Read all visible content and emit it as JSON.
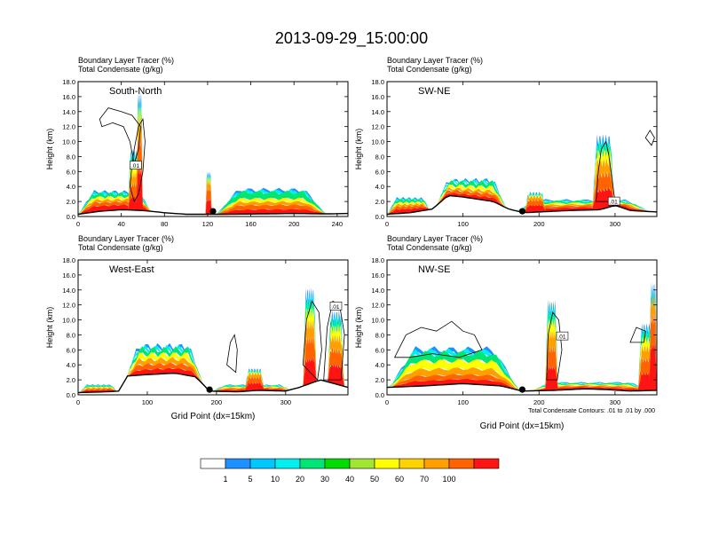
{
  "title": "2013-09-29_15:00:00",
  "colorbar": {
    "colors": [
      "#ffffff",
      "#1e90ff",
      "#00c8ff",
      "#00f0f0",
      "#00e676",
      "#00dc00",
      "#a0e632",
      "#ffff00",
      "#ffd200",
      "#ffa000",
      "#ff6400",
      "#ff1414"
    ],
    "labels": [
      "1",
      "5",
      "10",
      "20",
      "30",
      "40",
      "50",
      "60",
      "70",
      "100"
    ]
  },
  "chart_data": [
    {
      "type": "heatmap",
      "panel_label": "South-North",
      "title_lines": [
        "Boundary Layer Tracer   (%)",
        "Total Condensate   (g/kg)"
      ],
      "ylabel": "Height (km)",
      "xlabel": "",
      "xlim": [
        0,
        250
      ],
      "ylim": [
        0,
        18
      ],
      "xticks": [
        0,
        40,
        80,
        120,
        160,
        200,
        240
      ],
      "yticks": [
        "0.0",
        "2.0",
        "4.0",
        "6.0",
        "8.0",
        "10.0",
        "12.0",
        "14.0",
        "16.0",
        "18.0"
      ],
      "site_x": 125,
      "contour_label": ".01",
      "contour_label_pos": [
        53,
        6.8
      ],
      "terrain": [
        [
          0,
          0.3
        ],
        [
          20,
          0.7
        ],
        [
          40,
          0.9
        ],
        [
          60,
          0.8
        ],
        [
          80,
          0.5
        ],
        [
          100,
          0.3
        ],
        [
          125,
          0.3
        ],
        [
          140,
          0.3
        ],
        [
          170,
          0.35
        ],
        [
          200,
          0.4
        ],
        [
          230,
          0.35
        ],
        [
          250,
          0.4
        ]
      ],
      "tracer": [
        {
          "x": [
            0,
            70
          ],
          "top": 3.0,
          "layers": [
            0.3,
            0.2,
            0.15,
            0.15,
            0.2
          ]
        },
        {
          "x": [
            128,
            230
          ],
          "top": 3.2,
          "layers": [
            0.2,
            0.2,
            0.15,
            0.15,
            0.3
          ]
        },
        {
          "x": [
            46,
            58
          ],
          "top": 7.5,
          "layers": [
            0.25,
            0.25,
            0.2,
            0.15,
            0.15
          ]
        },
        {
          "x": [
            54,
            60
          ],
          "top": 13.8,
          "layers": [
            0.4,
            0.3,
            0.2,
            0.1,
            0.0
          ]
        },
        {
          "x": [
            118,
            124
          ],
          "top": 5.0,
          "layers": [
            0.4,
            0.3,
            0.2,
            0.1,
            0.0
          ]
        }
      ],
      "cloud_outlines": [
        {
          "points": [
            [
              20,
              13
            ],
            [
              28,
              14.5
            ],
            [
              40,
              14
            ],
            [
              50,
              13.5
            ],
            [
              58,
              12
            ],
            [
              56,
              9
            ],
            [
              52,
              7
            ],
            [
              48,
              10
            ],
            [
              42,
              12
            ],
            [
              32,
              12.5
            ],
            [
              22,
              12
            ]
          ]
        },
        {
          "points": [
            [
              48,
              4
            ],
            [
              50,
              7
            ],
            [
              52,
              9
            ],
            [
              56,
              12
            ],
            [
              60,
              13
            ],
            [
              62,
              10
            ],
            [
              60,
              6
            ],
            [
              56,
              3
            ],
            [
              52,
              2
            ]
          ]
        }
      ]
    },
    {
      "type": "heatmap",
      "panel_label": "SW-NE",
      "title_lines": [
        "Boundary Layer Tracer   (%)",
        "Total Condensate   (g/kg)"
      ],
      "ylabel": "Height (km)",
      "xlabel": "",
      "xlim": [
        0,
        355
      ],
      "ylim": [
        0,
        18
      ],
      "xticks": [
        0,
        100,
        200,
        300
      ],
      "yticks": [
        "0.0",
        "2.0",
        "4.0",
        "6.0",
        "8.0",
        "10.0",
        "12.0",
        "14.0",
        "16.0",
        "18.0"
      ],
      "site_x": 178,
      "contour_label": ".01",
      "contour_label_pos": [
        298,
        2.0
      ],
      "terrain": [
        [
          0,
          0.3
        ],
        [
          30,
          0.5
        ],
        [
          60,
          1.0
        ],
        [
          80,
          2.8
        ],
        [
          100,
          2.6
        ],
        [
          140,
          2.0
        ],
        [
          160,
          1.0
        ],
        [
          180,
          0.5
        ],
        [
          200,
          0.6
        ],
        [
          240,
          0.8
        ],
        [
          280,
          0.9
        ],
        [
          300,
          1.5
        ],
        [
          320,
          0.8
        ],
        [
          355,
          0.6
        ]
      ],
      "tracer": [
        {
          "x": [
            0,
            60
          ],
          "top": 2.2,
          "layers": [
            0.3,
            0.2,
            0.15,
            0.15,
            0.2
          ]
        },
        {
          "x": [
            60,
            160
          ],
          "top": 4.5,
          "layers": [
            0.2,
            0.2,
            0.15,
            0.2,
            0.25
          ]
        },
        {
          "x": [
            160,
            355
          ],
          "top": 2.0,
          "layers": [
            0.3,
            0.2,
            0.15,
            0.15,
            0.2
          ]
        },
        {
          "x": [
            270,
            300
          ],
          "top": 9.2,
          "layers": [
            0.3,
            0.25,
            0.2,
            0.15,
            0.1
          ]
        },
        {
          "x": [
            180,
            210
          ],
          "top": 2.8,
          "layers": [
            0.4,
            0.3,
            0.2,
            0.1,
            0.0
          ]
        }
      ],
      "cloud_outlines": [
        {
          "points": [
            [
              275,
              2
            ],
            [
              278,
              6
            ],
            [
              282,
              9
            ],
            [
              288,
              10
            ],
            [
              292,
              8
            ],
            [
              296,
              5
            ],
            [
              300,
              2
            ]
          ]
        },
        {
          "points": [
            [
              340,
              10.5
            ],
            [
              346,
              11.5
            ],
            [
              352,
              10.5
            ],
            [
              348,
              9.5
            ]
          ]
        }
      ]
    },
    {
      "type": "heatmap",
      "panel_label": "West-East",
      "title_lines": [
        "Boundary Layer Tracer   (%)",
        "Total Condensate   (g/kg)"
      ],
      "ylabel": "Height (km)",
      "xlabel": "Grid Point (dx=15km)",
      "xlim": [
        0,
        390
      ],
      "ylim": [
        0,
        18
      ],
      "xticks": [
        0,
        100,
        200,
        300
      ],
      "yticks": [
        "0.0",
        "2.0",
        "4.0",
        "6.0",
        "8.0",
        "10.0",
        "12.0",
        "14.0",
        "16.0",
        "18.0"
      ],
      "site_x": 190,
      "contour_label": ".01",
      "contour_label_pos": [
        372,
        11.8
      ],
      "terrain": [
        [
          0,
          0.3
        ],
        [
          40,
          0.4
        ],
        [
          60,
          0.5
        ],
        [
          70,
          2.5
        ],
        [
          100,
          2.7
        ],
        [
          140,
          2.9
        ],
        [
          170,
          2.4
        ],
        [
          190,
          0.5
        ],
        [
          230,
          0.4
        ],
        [
          260,
          0.6
        ],
        [
          300,
          0.5
        ],
        [
          320,
          1.0
        ],
        [
          350,
          2.0
        ],
        [
          390,
          1.0
        ]
      ],
      "tracer": [
        {
          "x": [
            0,
            60
          ],
          "top": 1.2,
          "layers": [
            0.3,
            0.2,
            0.15,
            0.15,
            0.2
          ]
        },
        {
          "x": [
            62,
            185
          ],
          "top": 6.0,
          "layers": [
            0.2,
            0.2,
            0.2,
            0.2,
            0.2
          ]
        },
        {
          "x": [
            185,
            320
          ],
          "top": 1.2,
          "layers": [
            0.3,
            0.2,
            0.15,
            0.15,
            0.2
          ]
        },
        {
          "x": [
            325,
            345
          ],
          "top": 12.0,
          "layers": [
            0.3,
            0.25,
            0.2,
            0.15,
            0.1
          ]
        },
        {
          "x": [
            360,
            385
          ],
          "top": 9.5,
          "layers": [
            0.3,
            0.25,
            0.2,
            0.15,
            0.1
          ]
        },
        {
          "x": [
            240,
            270
          ],
          "top": 3.0,
          "layers": [
            0.4,
            0.3,
            0.2,
            0.1,
            0.0
          ]
        }
      ],
      "cloud_outlines": [
        {
          "points": [
            [
              215,
              4
            ],
            [
              220,
              7
            ],
            [
              226,
              8
            ],
            [
              230,
              6
            ],
            [
              228,
              3
            ]
          ]
        },
        {
          "points": [
            [
              325,
              4
            ],
            [
              330,
              10
            ],
            [
              338,
              12.5
            ],
            [
              348,
              11
            ],
            [
              352,
              6
            ],
            [
              346,
              2
            ]
          ]
        },
        {
          "points": [
            [
              355,
              2
            ],
            [
              360,
              9
            ],
            [
              368,
              12.5
            ],
            [
              378,
              12
            ],
            [
              385,
              8
            ],
            [
              380,
              2
            ]
          ]
        }
      ]
    },
    {
      "type": "heatmap",
      "panel_label": "NW-SE",
      "title_lines": [
        "Boundary Layer Tracer   (%)",
        "Total Condensate   (g/kg)"
      ],
      "ylabel": "Height (km)",
      "xlabel": "Grid Point (dx=15km)",
      "xlim": [
        0,
        355
      ],
      "ylim": [
        0,
        18
      ],
      "xticks": [
        0,
        100,
        200,
        300
      ],
      "yticks": [
        "0.0",
        "2.0",
        "4.0",
        "6.0",
        "8.0",
        "10.0",
        "12.0",
        "14.0",
        "16.0",
        "18.0"
      ],
      "site_x": 178,
      "contour_label": ".01",
      "contour_label_pos": [
        230,
        7.8
      ],
      "footnote": "Total Condensate Contours: .01 to .01 by .000",
      "terrain": [
        [
          0,
          1.0
        ],
        [
          50,
          1.2
        ],
        [
          100,
          1.5
        ],
        [
          150,
          1.2
        ],
        [
          178,
          0.5
        ],
        [
          220,
          0.6
        ],
        [
          260,
          0.8
        ],
        [
          290,
          0.7
        ],
        [
          320,
          0.5
        ],
        [
          355,
          0.6
        ]
      ],
      "tracer": [
        {
          "x": [
            0,
            175
          ],
          "top": 5.5,
          "layers": [
            0.15,
            0.15,
            0.2,
            0.25,
            0.25
          ]
        },
        {
          "x": [
            180,
            355
          ],
          "top": 1.5,
          "layers": [
            0.3,
            0.2,
            0.15,
            0.15,
            0.2
          ]
        },
        {
          "x": [
            208,
            225
          ],
          "top": 10.5,
          "layers": [
            0.3,
            0.25,
            0.2,
            0.15,
            0.1
          ]
        },
        {
          "x": [
            330,
            355
          ],
          "top": 8.0,
          "layers": [
            0.3,
            0.25,
            0.2,
            0.15,
            0.1
          ]
        },
        {
          "x": [
            345,
            355
          ],
          "top": 12.5,
          "layers": [
            0.5,
            0.3,
            0.2,
            0.0,
            0.0
          ]
        }
      ],
      "cloud_outlines": [
        {
          "points": [
            [
              10,
              5
            ],
            [
              25,
              8
            ],
            [
              45,
              9
            ],
            [
              65,
              8.5
            ],
            [
              85,
              9.8
            ],
            [
              100,
              8.5
            ],
            [
              115,
              8
            ],
            [
              125,
              6
            ],
            [
              95,
              5
            ],
            [
              60,
              5.5
            ],
            [
              30,
              5
            ]
          ]
        },
        {
          "points": [
            [
              210,
              2
            ],
            [
              212,
              8
            ],
            [
              218,
              11
            ],
            [
              226,
              10
            ],
            [
              230,
              6
            ],
            [
              224,
              2
            ]
          ]
        },
        {
          "points": [
            [
              320,
              7
            ],
            [
              328,
              9
            ],
            [
              340,
              8.5
            ],
            [
              338,
              7
            ]
          ]
        }
      ]
    }
  ]
}
